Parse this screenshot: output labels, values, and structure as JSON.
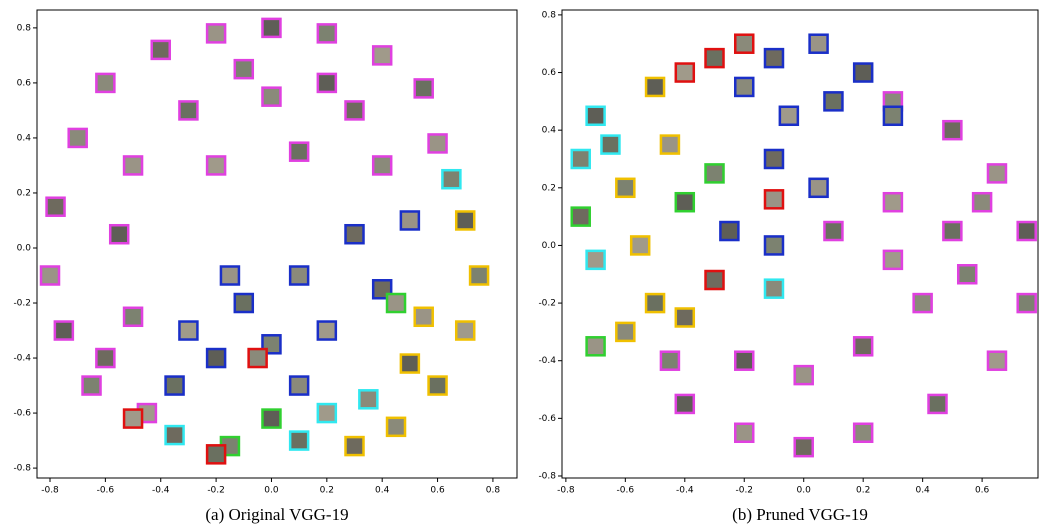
{
  "chart_data": [
    {
      "type": "scatter",
      "caption": "(a) Original VGG-19",
      "xlim": [
        -0.847,
        0.887
      ],
      "ylim": [
        -0.836,
        0.865
      ],
      "xticks": [
        -0.8,
        -0.6,
        -0.4,
        -0.2,
        {
          "value": 0,
          "label": "0.0"
        },
        0.2,
        0.4,
        0.6,
        0.8
      ],
      "yticks": [
        -0.8,
        -0.6,
        -0.4,
        -0.2,
        {
          "value": 0,
          "label": "0.0"
        },
        0.2,
        0.4,
        0.6,
        0.8
      ],
      "series": [
        {
          "color": "#e040e0",
          "x": [
            -0.6,
            -0.4,
            -0.2,
            0,
            0.2,
            0.4,
            0.55,
            -0.7,
            -0.78,
            -0.8,
            -0.75,
            -0.65,
            -0.45,
            -0.3,
            0,
            0.3,
            -0.5,
            -0.55,
            -0.5,
            -0.2,
            0.1,
            0.4,
            -0.6,
            0.6,
            0.2,
            -0.1
          ],
          "y": [
            0.6,
            0.72,
            0.78,
            0.8,
            0.78,
            0.7,
            0.58,
            0.4,
            0.15,
            -0.1,
            -0.3,
            -0.5,
            -0.6,
            0.5,
            0.55,
            0.5,
            0.3,
            0.05,
            -0.25,
            0.3,
            0.35,
            0.3,
            -0.4,
            0.38,
            0.6,
            0.65
          ]
        },
        {
          "color": "#1a2fc8",
          "x": [
            -0.3,
            -0.1,
            0.1,
            0.3,
            0.5,
            -0.2,
            0,
            0.2,
            -0.35,
            0.1,
            0.4,
            -0.15
          ],
          "y": [
            -0.3,
            -0.2,
            -0.1,
            0.05,
            0.1,
            -0.4,
            -0.35,
            -0.3,
            -0.5,
            -0.5,
            -0.15,
            -0.1
          ]
        },
        {
          "color": "#f0c000",
          "x": [
            0.7,
            0.75,
            0.7,
            0.6,
            0.45,
            0.3,
            0.55,
            0.5
          ],
          "y": [
            0.1,
            -0.1,
            -0.3,
            -0.5,
            -0.65,
            -0.72,
            -0.25,
            -0.42
          ]
        },
        {
          "color": "#30e8f0",
          "x": [
            0.65,
            0.2,
            0.1,
            0.35,
            -0.35
          ],
          "y": [
            0.25,
            -0.6,
            -0.7,
            -0.55,
            -0.68
          ]
        },
        {
          "color": "#30d030",
          "x": [
            0.45,
            0,
            -0.15
          ],
          "y": [
            -0.2,
            -0.62,
            -0.72
          ]
        },
        {
          "color": "#e01010",
          "x": [
            -0.5,
            -0.2,
            -0.05
          ],
          "y": [
            -0.62,
            -0.75,
            -0.4
          ]
        }
      ]
    },
    {
      "type": "scatter",
      "caption": "(b) Pruned VGG-19",
      "xlim": [
        -0.813,
        0.788
      ],
      "ylim": [
        -0.807,
        0.817
      ],
      "xticks": [
        -0.8,
        -0.6,
        -0.4,
        -0.2,
        {
          "value": 0,
          "label": "0.0"
        },
        0.2,
        0.4,
        0.6
      ],
      "yticks": [
        -0.8,
        -0.6,
        -0.4,
        -0.2,
        {
          "value": 0,
          "label": "0.0"
        },
        0.2,
        0.4,
        0.6,
        0.8
      ],
      "series": [
        {
          "color": "#e040e0",
          "x": [
            0.3,
            0.5,
            0.65,
            0.75,
            0.75,
            0.65,
            0.45,
            0.2,
            0,
            -0.2,
            -0.4,
            -0.45,
            0.3,
            0.5,
            0.4,
            0.2,
            0,
            -0.2,
            0.55,
            0.3,
            0.1,
            0.6
          ],
          "y": [
            0.5,
            0.4,
            0.25,
            0.05,
            -0.2,
            -0.4,
            -0.55,
            -0.65,
            -0.7,
            -0.65,
            -0.55,
            -0.4,
            0.15,
            0.05,
            -0.2,
            -0.35,
            -0.45,
            -0.4,
            -0.1,
            -0.05,
            0.05,
            0.15
          ]
        },
        {
          "color": "#1a2fc8",
          "x": [
            -0.1,
            0.05,
            0.2,
            0.3,
            -0.05,
            0.1,
            -0.2,
            -0.1,
            0.05,
            -0.25,
            -0.1
          ],
          "y": [
            0.65,
            0.7,
            0.6,
            0.45,
            0.45,
            0.5,
            0.55,
            0.3,
            0.2,
            0.05,
            0
          ]
        },
        {
          "color": "#e01010",
          "x": [
            -0.4,
            -0.3,
            -0.2,
            -0.3,
            -0.1
          ],
          "y": [
            0.6,
            0.65,
            0.7,
            -0.12,
            0.16
          ]
        },
        {
          "color": "#f0c000",
          "x": [
            -0.5,
            -0.6,
            -0.55,
            -0.5,
            -0.6,
            -0.4,
            -0.45
          ],
          "y": [
            0.55,
            0.2,
            0,
            -0.2,
            -0.3,
            -0.25,
            0.35
          ]
        },
        {
          "color": "#30e8f0",
          "x": [
            -0.7,
            -0.75,
            -0.7,
            -0.65,
            -0.1
          ],
          "y": [
            0.45,
            0.3,
            -0.05,
            0.35,
            -0.15
          ]
        },
        {
          "color": "#30d030",
          "x": [
            -0.75,
            -0.7,
            -0.4,
            -0.3
          ],
          "y": [
            0.1,
            -0.35,
            0.15,
            0.25
          ]
        }
      ]
    }
  ]
}
